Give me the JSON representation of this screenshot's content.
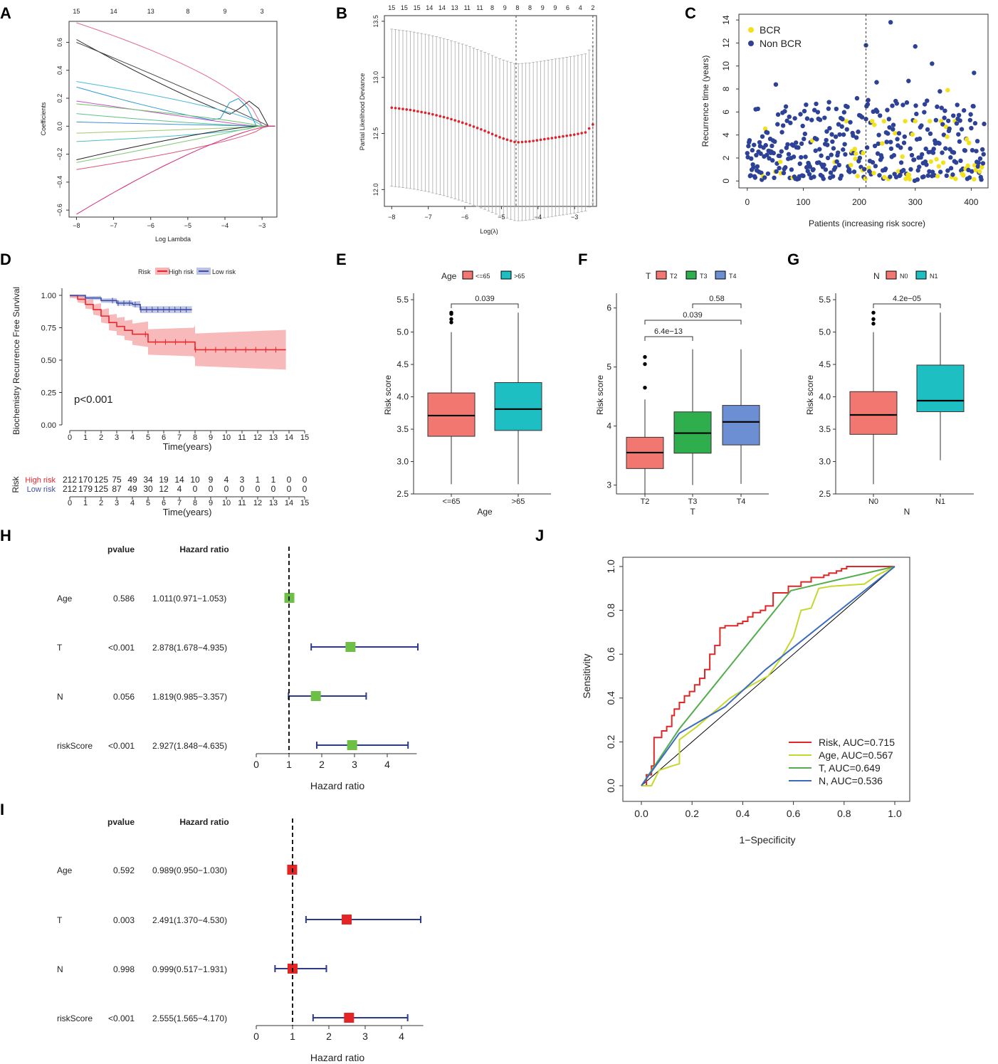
{
  "panels": {
    "A": {
      "label": "A",
      "xlabel": "Log Lambda",
      "ylabel": "Coefficients",
      "xticks": [
        -8,
        -7,
        -6,
        -5,
        -4,
        -3
      ],
      "yticks": [
        -0.6,
        -0.4,
        -0.2,
        0.0,
        0.2,
        0.4,
        0.6
      ],
      "top_ticks": [
        "15",
        "14",
        "13",
        "8",
        "9",
        "3"
      ]
    },
    "B": {
      "label": "B",
      "xlabel": "Log(λ)",
      "ylabel": "Partial Likelihood Deviance",
      "xticks": [
        -8,
        -7,
        -6,
        -5,
        -4,
        -3
      ],
      "yticks": [
        12.0,
        12.5,
        13.0,
        13.5
      ],
      "top_ticks": [
        "15",
        "15",
        "15",
        "14",
        "14",
        "13",
        "11",
        "11",
        "8",
        "9",
        "8",
        "8",
        "9",
        "9",
        "6",
        "4",
        "2"
      ]
    },
    "C": {
      "label": "C",
      "xlabel": "Patients (increasing risk socre)",
      "ylabel": "Recurrence time (years)",
      "xticks": [
        0,
        100,
        200,
        300,
        400
      ],
      "yticks": [
        0,
        2,
        4,
        6,
        8,
        10,
        12,
        14
      ],
      "legend": [
        "BCR",
        "Non BCR"
      ],
      "colors": {
        "bcr": "#f2e21c",
        "nonbcr": "#2d4296"
      }
    },
    "D": {
      "label": "D",
      "legend_title": "Risk",
      "legend": [
        "High risk",
        "Low risk"
      ],
      "ylabel": "Biochemistry Recurrence Free Survival",
      "xlabel": "Time(years)",
      "pvalue_text": "p<0.001",
      "xticks": [
        "0",
        "1",
        "2",
        "3",
        "4",
        "5",
        "6",
        "7",
        "8",
        "9",
        "10",
        "11",
        "12",
        "13",
        "14",
        "15"
      ],
      "yticks": [
        "0.00",
        "0.25",
        "0.50",
        "0.75",
        "1.00"
      ],
      "table_title": "Risk",
      "table_rows": [
        {
          "name": "High risk",
          "values": [
            "212",
            "170",
            "125",
            "75",
            "49",
            "34",
            "19",
            "14",
            "10",
            "9",
            "4",
            "3",
            "1",
            "1",
            "0",
            "0"
          ]
        },
        {
          "name": "Low risk",
          "values": [
            "212",
            "179",
            "125",
            "87",
            "49",
            "30",
            "12",
            "4",
            "0",
            "0",
            "0",
            "0",
            "0",
            "0",
            "0",
            "0"
          ]
        }
      ],
      "colors": {
        "high": "#e8262b",
        "low": "#3f4fa8"
      }
    },
    "E": {
      "label": "E",
      "legend_title": "Age",
      "legend": [
        "<=65",
        ">65"
      ],
      "xlabel": "Age",
      "ylabel": "Risk score",
      "pvalues": [
        "0.039"
      ],
      "yticks": [
        "2.5",
        "3.0",
        "3.5",
        "4.0",
        "4.5",
        "5.0",
        "5.5"
      ],
      "categories": [
        "<=65",
        ">65"
      ]
    },
    "F": {
      "label": "F",
      "legend_title": "T",
      "legend": [
        "T2",
        "T3",
        "T4"
      ],
      "xlabel": "T",
      "ylabel": "Risk score",
      "pvalues": [
        "0.58",
        "0.039",
        "6.4e−13"
      ],
      "yticks": [
        "3",
        "4",
        "5",
        "6"
      ],
      "categories": [
        "T2",
        "T3",
        "T4"
      ]
    },
    "G": {
      "label": "G",
      "legend_title": "N",
      "legend": [
        "N0",
        "N1"
      ],
      "xlabel": "N",
      "ylabel": "Risk score",
      "pvalues": [
        "4.2e−05"
      ],
      "yticks": [
        "2.5",
        "3.0",
        "3.5",
        "4.0",
        "4.5",
        "5.0",
        "5.5"
      ],
      "categories": [
        "N0",
        "N1"
      ]
    },
    "H": {
      "label": "H",
      "col_pvalue": "pvalue",
      "col_hr": "Hazard ratio",
      "xlabel": "Hazard ratio",
      "xticks": [
        "0",
        "1",
        "2",
        "3",
        "4"
      ],
      "rows": [
        {
          "name": "Age",
          "p": "0.586",
          "hr_text": "1.011(0.971−1.053)"
        },
        {
          "name": "T",
          "p": "<0.001",
          "hr_text": "2.878(1.678−4.935)"
        },
        {
          "name": "N",
          "p": "0.056",
          "hr_text": "1.819(0.985−3.357)"
        },
        {
          "name": "riskScore",
          "p": "<0.001",
          "hr_text": "2.927(1.848−4.635)"
        }
      ]
    },
    "I": {
      "label": "I",
      "col_pvalue": "pvalue",
      "col_hr": "Hazard ratio",
      "xlabel": "Hazard ratio",
      "xticks": [
        "0",
        "1",
        "2",
        "3",
        "4"
      ],
      "rows": [
        {
          "name": "Age",
          "p": "0.592",
          "hr_text": "0.989(0.950−1.030)"
        },
        {
          "name": "T",
          "p": "0.003",
          "hr_text": "2.491(1.370−4.530)"
        },
        {
          "name": "N",
          "p": "0.998",
          "hr_text": "0.999(0.517−1.931)"
        },
        {
          "name": "riskScore",
          "p": "<0.001",
          "hr_text": "2.555(1.565−4.170)"
        }
      ]
    },
    "J": {
      "label": "J",
      "xlabel": "1−Specificity",
      "ylabel": "Sensitivity",
      "xticks": [
        "0.0",
        "0.2",
        "0.4",
        "0.6",
        "0.8",
        "1.0"
      ],
      "yticks": [
        "0.0",
        "0.2",
        "0.4",
        "0.6",
        "0.8",
        "1.0"
      ],
      "legend": [
        "Risk, AUC=0.715",
        "Age, AUC=0.567",
        "T, AUC=0.649",
        "N, AUC=0.536"
      ]
    }
  },
  "chart_data": [
    {
      "panel": "A",
      "type": "line",
      "title": "",
      "xlabel": "Log Lambda",
      "ylabel": "Coefficients",
      "xlim": [
        -8.2,
        -2.6
      ],
      "ylim": [
        -0.65,
        0.75
      ],
      "series": [
        {
          "name": "coef1",
          "start": 0.74,
          "end": 0.0
        },
        {
          "name": "coef2",
          "start": 0.62,
          "end": 0.0
        },
        {
          "name": "coef3",
          "start": 0.6,
          "end": 0.0
        },
        {
          "name": "coef4",
          "start": 0.32,
          "end": 0.0
        },
        {
          "name": "coef5",
          "start": 0.28,
          "end": 0.0
        },
        {
          "name": "coef6",
          "start": 0.18,
          "end": 0.0
        },
        {
          "name": "coef7",
          "start": 0.16,
          "end": 0.0
        },
        {
          "name": "coef8",
          "start": 0.09,
          "end": 0.0
        },
        {
          "name": "coef9",
          "start": 0.03,
          "end": 0.0
        },
        {
          "name": "coef10",
          "start": -0.05,
          "end": 0.0
        },
        {
          "name": "coef11",
          "start": -0.11,
          "end": 0.0
        },
        {
          "name": "coef12",
          "start": -0.24,
          "end": 0.0
        },
        {
          "name": "coef13",
          "start": -0.26,
          "end": 0.0
        },
        {
          "name": "coef14",
          "start": -0.31,
          "end": 0.0
        },
        {
          "name": "coef15",
          "start": -0.63,
          "end": 0.0
        }
      ]
    },
    {
      "panel": "B",
      "type": "line",
      "title": "",
      "xlabel": "Log(λ)",
      "ylabel": "Partial Likelihood Deviance",
      "xlim": [
        -8.2,
        -2.4
      ],
      "ylim": [
        11.85,
        13.55
      ],
      "series": [
        {
          "name": "deviance",
          "x": [
            -8.0,
            -7.5,
            -7.0,
            -6.5,
            -6.0,
            -5.5,
            -5.0,
            -4.6,
            -4.2,
            -3.8,
            -3.4,
            -3.0,
            -2.7,
            -2.5
          ],
          "y": [
            12.73,
            12.71,
            12.68,
            12.64,
            12.59,
            12.53,
            12.46,
            12.42,
            12.43,
            12.45,
            12.47,
            12.49,
            12.51,
            12.58
          ],
          "err": 0.7
        }
      ],
      "vlines": [
        -4.6,
        -2.5
      ]
    },
    {
      "panel": "C",
      "type": "scatter",
      "title": "",
      "xlabel": "Patients (increasing risk socre)",
      "ylabel": "Recurrence time (years)",
      "xlim": [
        -15,
        430
      ],
      "ylim": [
        -0.6,
        14.5
      ],
      "vline": 212,
      "highlight_points": [
        {
          "x": 256,
          "y": 13.8,
          "group": "Non BCR"
        },
        {
          "x": 212,
          "y": 11.8,
          "group": "Non BCR"
        },
        {
          "x": 300,
          "y": 11.7,
          "group": "Non BCR"
        },
        {
          "x": 330,
          "y": 10.2,
          "group": "Non BCR"
        },
        {
          "x": 405,
          "y": 9.4,
          "group": "Non BCR"
        },
        {
          "x": 358,
          "y": 7.9,
          "group": "BCR"
        }
      ],
      "groups": [
        "BCR",
        "Non BCR"
      ]
    },
    {
      "panel": "D",
      "type": "line",
      "title": "",
      "xlabel": "Time(years)",
      "ylabel": "Biochemistry Recurrence Free Survival",
      "xlim": [
        -0.5,
        15.3
      ],
      "ylim": [
        0,
        1.05
      ],
      "series": [
        {
          "name": "High risk",
          "x": [
            0,
            0.5,
            1,
            1.5,
            2,
            2.5,
            3,
            3.5,
            4,
            5,
            6,
            7,
            7.9,
            8,
            13.8
          ],
          "y": [
            1.0,
            0.97,
            0.93,
            0.89,
            0.84,
            0.79,
            0.76,
            0.73,
            0.7,
            0.64,
            0.64,
            0.64,
            0.64,
            0.58,
            0.58
          ]
        },
        {
          "name": "Low risk",
          "x": [
            0,
            1,
            2,
            3,
            4,
            4.5,
            5,
            6,
            7,
            7.8
          ],
          "y": [
            1.0,
            0.98,
            0.96,
            0.94,
            0.93,
            0.89,
            0.89,
            0.89,
            0.89,
            0.89
          ]
        }
      ]
    },
    {
      "panel": "E",
      "type": "box",
      "categories": [
        "<=65",
        ">65"
      ],
      "ylabel": "Risk score",
      "ylim": [
        2.5,
        5.6
      ],
      "boxes": [
        {
          "name": "<=65",
          "min": 2.65,
          "q1": 3.39,
          "median": 3.71,
          "q3": 4.06,
          "max": 5.0,
          "outliers": [
            5.15,
            5.2,
            5.28,
            5.3
          ]
        },
        {
          "name": ">65",
          "min": 2.65,
          "q1": 3.48,
          "median": 3.81,
          "q3": 4.22,
          "max": 5.3,
          "outliers": []
        }
      ]
    },
    {
      "panel": "F",
      "type": "box",
      "categories": [
        "T2",
        "T3",
        "T4"
      ],
      "ylabel": "Risk score",
      "ylim": [
        2.85,
        6.25
      ],
      "boxes": [
        {
          "name": "T2",
          "min": 2.85,
          "q1": 3.28,
          "median": 3.55,
          "q3": 3.81,
          "max": 4.45,
          "outliers": [
            4.65,
            5.05,
            5.17
          ]
        },
        {
          "name": "T3",
          "min": 3.0,
          "q1": 3.54,
          "median": 3.88,
          "q3": 4.24,
          "max": 5.3,
          "outliers": []
        },
        {
          "name": "T4",
          "min": 3.02,
          "q1": 3.68,
          "median": 4.07,
          "q3": 4.35,
          "max": 5.3,
          "outliers": []
        }
      ]
    },
    {
      "panel": "G",
      "type": "box",
      "categories": [
        "N0",
        "N1"
      ],
      "ylabel": "Risk score",
      "ylim": [
        2.5,
        5.6
      ],
      "boxes": [
        {
          "name": "N0",
          "min": 2.65,
          "q1": 3.42,
          "median": 3.72,
          "q3": 4.08,
          "max": 5.0,
          "outliers": [
            5.13,
            5.2,
            5.3
          ]
        },
        {
          "name": "N1",
          "min": 3.02,
          "q1": 3.77,
          "median": 3.94,
          "q3": 4.49,
          "max": 5.3,
          "outliers": []
        }
      ]
    },
    {
      "panel": "H",
      "type": "forest",
      "xlabel": "Hazard ratio",
      "xlim": [
        0,
        4.9
      ],
      "rows": [
        {
          "name": "Age",
          "hr": 1.011,
          "low": 0.971,
          "high": 1.053
        },
        {
          "name": "T",
          "hr": 2.878,
          "low": 1.678,
          "high": 4.935
        },
        {
          "name": "N",
          "hr": 1.819,
          "low": 0.985,
          "high": 3.357
        },
        {
          "name": "riskScore",
          "hr": 2.927,
          "low": 1.848,
          "high": 4.635
        }
      ]
    },
    {
      "panel": "I",
      "type": "forest",
      "xlabel": "Hazard ratio",
      "xlim": [
        0,
        4.6
      ],
      "rows": [
        {
          "name": "Age",
          "hr": 0.989,
          "low": 0.95,
          "high": 1.03
        },
        {
          "name": "T",
          "hr": 2.491,
          "low": 1.37,
          "high": 4.53
        },
        {
          "name": "N",
          "hr": 0.999,
          "low": 0.517,
          "high": 1.931
        },
        {
          "name": "riskScore",
          "hr": 2.555,
          "low": 1.565,
          "high": 4.17
        }
      ]
    },
    {
      "panel": "J",
      "type": "line",
      "title": "",
      "xlabel": "1−Specificity",
      "ylabel": "Sensitivity",
      "xlim": [
        -0.04,
        1.04
      ],
      "ylim": [
        -0.06,
        1.06
      ],
      "series": [
        {
          "name": "Risk, AUC=0.715",
          "color": "#e02727",
          "x": [
            0,
            0.01,
            0.02,
            0.02,
            0.04,
            0.04,
            0.05,
            0.05,
            0.08,
            0.08,
            0.1,
            0.1,
            0.12,
            0.12,
            0.13,
            0.13,
            0.15,
            0.15,
            0.17,
            0.17,
            0.19,
            0.19,
            0.21,
            0.21,
            0.23,
            0.23,
            0.25,
            0.25,
            0.27,
            0.27,
            0.29,
            0.29,
            0.31,
            0.31,
            0.33,
            0.33,
            0.38,
            0.38,
            0.4,
            0.4,
            0.42,
            0.42,
            0.44,
            0.44,
            0.47,
            0.47,
            0.49,
            0.49,
            0.52,
            0.52,
            0.58,
            0.58,
            0.63,
            0.63,
            0.67,
            0.67,
            0.72,
            0.72,
            0.74,
            0.74,
            0.77,
            0.77,
            0.79,
            0.79,
            0.81,
            0.81,
            0.86,
            0.86,
            1.0
          ],
          "y": [
            0,
            0,
            0,
            0.05,
            0.05,
            0.09,
            0.09,
            0.22,
            0.22,
            0.25,
            0.25,
            0.27,
            0.27,
            0.32,
            0.32,
            0.35,
            0.35,
            0.38,
            0.38,
            0.41,
            0.41,
            0.43,
            0.43,
            0.46,
            0.46,
            0.49,
            0.49,
            0.53,
            0.53,
            0.6,
            0.6,
            0.64,
            0.64,
            0.72,
            0.72,
            0.73,
            0.73,
            0.74,
            0.74,
            0.75,
            0.75,
            0.77,
            0.77,
            0.79,
            0.79,
            0.8,
            0.8,
            0.82,
            0.82,
            0.88,
            0.88,
            0.91,
            0.91,
            0.93,
            0.93,
            0.95,
            0.95,
            0.96,
            0.96,
            0.97,
            0.97,
            0.98,
            0.98,
            0.99,
            0.99,
            1.0,
            1.0,
            1.0,
            1.0
          ]
        },
        {
          "name": "Age, AUC=0.567",
          "color": "#c6d82c",
          "x": [
            0,
            0.04,
            0.07,
            0.12,
            0.15,
            0.15,
            0.22,
            0.35,
            0.42,
            0.5,
            0.55,
            0.6,
            0.63,
            0.67,
            0.7,
            0.75,
            0.88,
            0.93,
            1.0
          ],
          "y": [
            0,
            0,
            0.07,
            0.09,
            0.1,
            0.21,
            0.27,
            0.4,
            0.45,
            0.5,
            0.58,
            0.68,
            0.8,
            0.81,
            0.9,
            0.91,
            0.92,
            0.96,
            1.0
          ]
        },
        {
          "name": "T, AUC=0.649",
          "color": "#52ad4b",
          "x": [
            0,
            0.15,
            0.59,
            1.0
          ],
          "y": [
            0,
            0.26,
            0.89,
            1.0
          ]
        },
        {
          "name": "N, AUC=0.536",
          "color": "#3a6bbf",
          "x": [
            0,
            0.15,
            0.33,
            0.49,
            1.0
          ],
          "y": [
            0,
            0.24,
            0.36,
            0.53,
            1.0
          ]
        }
      ]
    }
  ]
}
